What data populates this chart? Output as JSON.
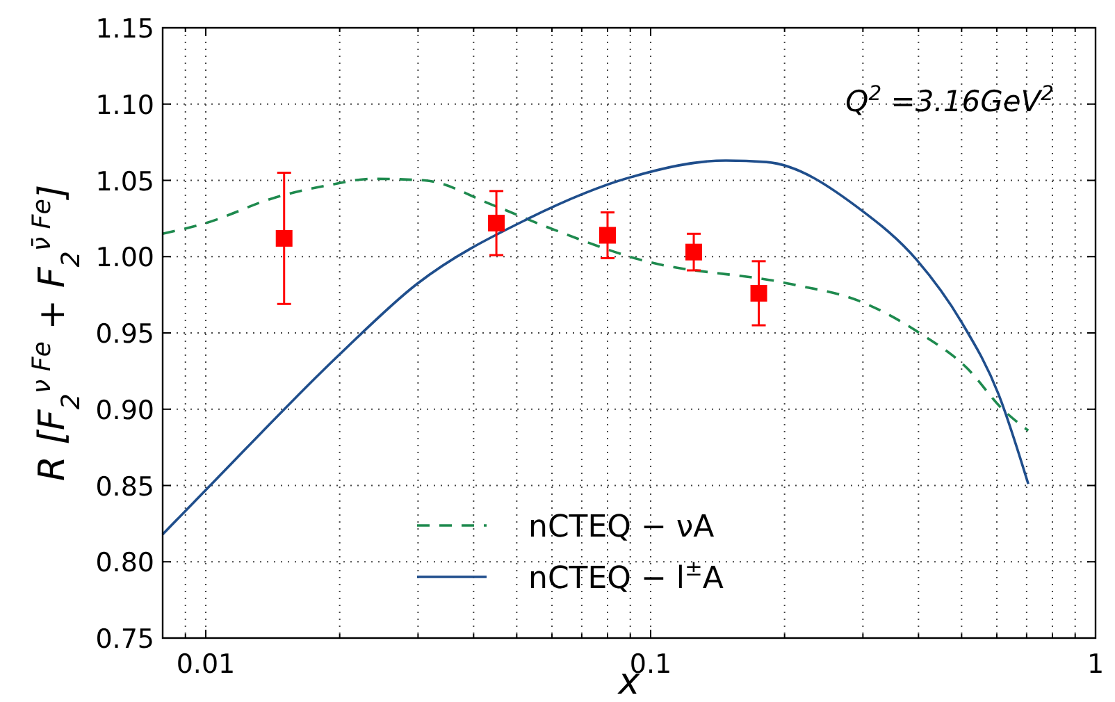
{
  "chart_data": {
    "type": "line",
    "xlabel": "x",
    "ylabel": "R [F$_{2}$$^{ν Fe}$ + F$_{2}$$^{ν̄ Fe}$]",
    "annotations": [
      "Q$^{2}$ =3.16GeV$^{2}$"
    ],
    "log": "x",
    "grid": true,
    "legend": "bottom",
    "xlim": [
      0.008,
      1
    ],
    "xticks": [
      {
        "value": 0.008,
        "label": null
      },
      {
        "value": 0.009,
        "label": null
      },
      0.01,
      {
        "value": 0.02,
        "label": null
      },
      {
        "value": 0.03,
        "label": null
      },
      {
        "value": 0.04,
        "label": null
      },
      {
        "value": 0.05,
        "label": null
      },
      {
        "value": 0.06,
        "label": null
      },
      {
        "value": 0.07,
        "label": null
      },
      {
        "value": 0.08,
        "label": null
      },
      {
        "value": 0.09,
        "label": null
      },
      0.1,
      {
        "value": 0.2,
        "label": null
      },
      {
        "value": 0.3,
        "label": null
      },
      {
        "value": 0.4,
        "label": null
      },
      {
        "value": 0.5,
        "label": null
      },
      {
        "value": 0.6,
        "label": null
      },
      {
        "value": 0.7,
        "label": null
      },
      {
        "value": 0.8,
        "label": null
      },
      {
        "value": 0.9,
        "label": null
      },
      1
    ],
    "ylim": [
      0.75,
      1.15
    ],
    "yticks": [
      {
        "value": 0.75,
        "label": "0.75"
      },
      {
        "value": 0.8,
        "label": "0.80"
      },
      {
        "value": 0.85,
        "label": "0.85"
      },
      {
        "value": 0.9,
        "label": "0.90"
      },
      {
        "value": 0.95,
        "label": "0.95"
      },
      {
        "value": 1.0,
        "label": "1.00"
      },
      {
        "value": 1.05,
        "label": "1.05"
      },
      {
        "value": 1.1,
        "label": "1.10"
      },
      {
        "value": 1.15,
        "label": "1.15"
      }
    ],
    "series": [
      {
        "name": "nCTEQ − νA",
        "color": "#1e8a4e",
        "line_style": "dashed",
        "x": [
          0.008,
          0.01,
          0.0144,
          0.019,
          0.0236,
          0.031,
          0.044,
          0.059,
          0.0947,
          0.207,
          0.294,
          0.402,
          0.514,
          0.618,
          0.706
        ],
        "values": [
          1.015,
          1.022,
          1.039,
          1.047,
          1.051,
          1.05,
          1.034,
          1.019,
          0.998,
          0.982,
          0.971,
          0.95,
          0.927,
          0.9,
          0.886
        ]
      },
      {
        "name": "nCTEQ − l$^{±}$A",
        "color": "#1f4e8c",
        "line_style": "solid",
        "x": [
          0.008,
          0.01,
          0.02,
          0.0298,
          0.0523,
          0.09,
          0.1476,
          0.182,
          0.299,
          0.396,
          0.5,
          0.605,
          0.706
        ],
        "values": [
          0.818,
          0.847,
          0.936,
          0.982,
          1.024,
          1.052,
          1.063,
          1.062,
          1.03,
          0.998,
          0.957,
          0.91,
          0.851
        ]
      },
      {
        "type": "scatter",
        "color": "#ff0000",
        "marker": "square",
        "x": [
          0.015,
          0.045,
          0.08,
          0.125,
          0.175
        ],
        "values": [
          1.012,
          1.022,
          1.014,
          1.003,
          0.976
        ],
        "errors": [
          0.043,
          0.021,
          0.015,
          0.012,
          0.021
        ]
      }
    ]
  }
}
